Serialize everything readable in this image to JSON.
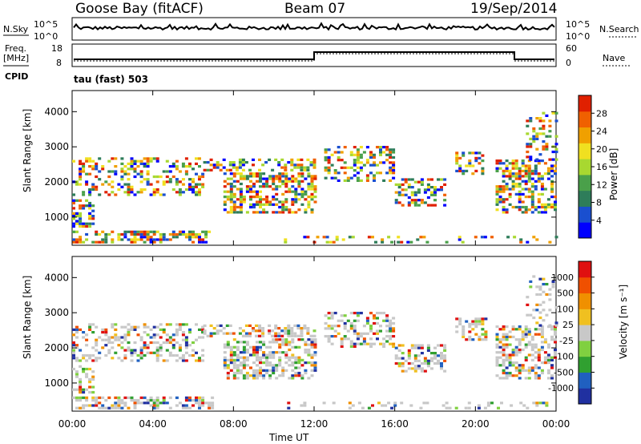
{
  "header": {
    "radar": "Goose Bay (fitACF)",
    "beam": "Beam 07",
    "date": "19/Sep/2014",
    "mode": "tau (fast) 503"
  },
  "summary": {
    "nsky_label": "N.Sky",
    "nsearch_label": "N.Search",
    "freq_label": "Freq.",
    "freq_unit": "[MHz]",
    "nave_label": "Nave",
    "cpid_label": "CPID",
    "noise_ticks": [
      "10^5",
      "10^0"
    ],
    "freq_ticks": [
      "18",
      "8"
    ],
    "nave_ticks": [
      "60",
      "0"
    ]
  },
  "chart_data": [
    {
      "type": "heatmap",
      "title": "",
      "ylabel": "Slant Range [km]",
      "xlabel": "Time UT",
      "x_ticks": [
        "00:00",
        "04:00",
        "08:00",
        "12:00",
        "16:00",
        "20:00",
        "00:00"
      ],
      "y_ticks": [
        "1000",
        "2000",
        "3000",
        "4000"
      ],
      "ylim": [
        200,
        4600
      ],
      "xlim_hours": [
        0,
        24
      ],
      "colorbar": {
        "label": "Power [dB]",
        "ticks": [
          "4",
          "8",
          "12",
          "16",
          "20",
          "24",
          "28"
        ],
        "colors": [
          "#0000ff",
          "#1a4fcf",
          "#2e7d5a",
          "#4aa04a",
          "#a8d830",
          "#f0e020",
          "#f0a000",
          "#f06000",
          "#e02000"
        ]
      }
    },
    {
      "type": "heatmap",
      "title": "",
      "ylabel": "Slant Range [km]",
      "xlabel": "Time UT",
      "x_ticks": [
        "00:00",
        "04:00",
        "08:00",
        "12:00",
        "16:00",
        "20:00",
        "00:00"
      ],
      "y_ticks": [
        "1000",
        "2000",
        "3000",
        "4000"
      ],
      "ylim": [
        200,
        4600
      ],
      "xlim_hours": [
        0,
        24
      ],
      "colorbar": {
        "label": "Velocity [m s⁻¹]",
        "ticks": [
          "1000",
          "500",
          "100",
          "25",
          "-25",
          "-100",
          "-500",
          "-1000"
        ],
        "colors": [
          "#2030a0",
          "#2060c0",
          "#30a030",
          "#80d040",
          "#c8c8c8",
          "#f0c020",
          "#f09000",
          "#f05000",
          "#e01010"
        ]
      }
    }
  ],
  "xaxis": {
    "label": "Time UT"
  }
}
